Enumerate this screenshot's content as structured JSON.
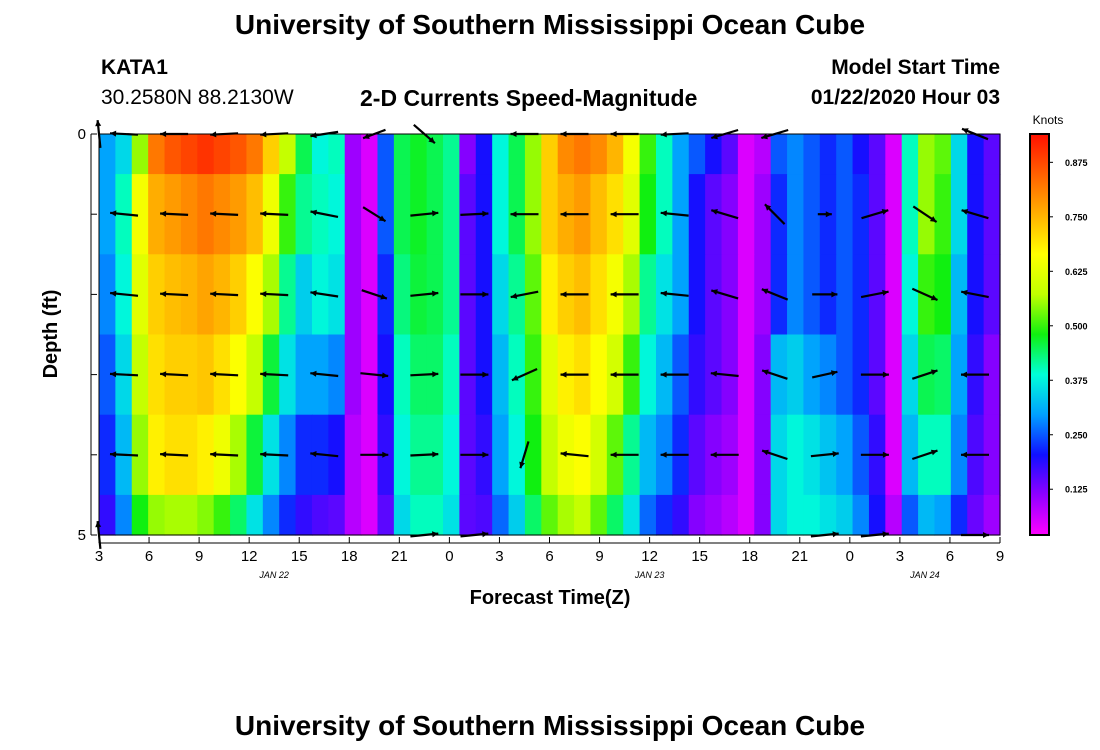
{
  "title_top": "University of Southern Mississippi Ocean Cube",
  "title_bottom": "University of Southern Mississippi Ocean Cube",
  "station": {
    "id": "KATA1",
    "coords": "30.2580N 88.2130W"
  },
  "plot_title": "2-D Currents Speed-Magnitude",
  "model_start": {
    "label": "Model Start Time",
    "value": "01/22/2020 Hour 03"
  },
  "colors": {
    "arrow": "#000000",
    "colormap": [
      "#ff00ff",
      "#9000ff",
      "#1010ff",
      "#00a0ff",
      "#00ffd8",
      "#10f010",
      "#c0ff00",
      "#ffff00",
      "#ffb000",
      "#ff6000",
      "#ff1000"
    ]
  },
  "chart_data": {
    "type": "heatmap",
    "title": "2-D Currents Speed-Magnitude",
    "xlabel": "Forecast Time(Z)",
    "ylabel": "Depth (ft)",
    "colorbar_label": "Knots",
    "colorbar_ticks": [
      "0.875",
      "0.750",
      "0.625",
      "0.500",
      "0.375",
      "0.250",
      "0.125"
    ],
    "colorbar_tick_values": [
      0.875,
      0.75,
      0.625,
      0.5,
      0.375,
      0.25,
      0.125
    ],
    "colorbar_range": [
      0.02,
      0.94
    ],
    "x_range_hours": [
      0,
      54
    ],
    "x_ticks": [
      "3",
      "6",
      "9",
      "12",
      "15",
      "18",
      "21",
      "0",
      "3",
      "6",
      "9",
      "12",
      "15",
      "18",
      "21",
      "0",
      "3",
      "6",
      "9"
    ],
    "x_tick_hours": [
      0,
      3,
      6,
      9,
      12,
      15,
      18,
      21,
      24,
      27,
      30,
      33,
      36,
      39,
      42,
      45,
      48,
      51,
      54
    ],
    "date_labels": [
      {
        "text": "JAN 22",
        "hour": 10.5
      },
      {
        "text": "JAN 23",
        "hour": 33
      },
      {
        "text": "JAN 24",
        "hour": 49.5
      }
    ],
    "y_ticks": [
      "0",
      "5"
    ],
    "y_range_ft": [
      0,
      5
    ],
    "depth_levels_ft": [
      0,
      1,
      2,
      3,
      4,
      5
    ],
    "depth_band_ft": [
      [
        0,
        0.5
      ],
      [
        0.5,
        1.5
      ],
      [
        1.5,
        2.5
      ],
      [
        2.5,
        3.5
      ],
      [
        3.5,
        4.5
      ],
      [
        4.5,
        5
      ]
    ],
    "band_profiles": [
      [
        0.3,
        0.35,
        0.55,
        0.82,
        0.86,
        0.88,
        0.9,
        0.88,
        0.86,
        0.82,
        0.72,
        0.58,
        0.45,
        0.38,
        0.4,
        0.1,
        0.05,
        0.25,
        0.45,
        0.47,
        0.45,
        0.42,
        0.12,
        0.2,
        0.38,
        0.45,
        0.55,
        0.72,
        0.8,
        0.82,
        0.8,
        0.75,
        0.65,
        0.5,
        0.4,
        0.3,
        0.25,
        0.2,
        0.15,
        0.05,
        0.08,
        0.25,
        0.28,
        0.25,
        0.22,
        0.25,
        0.2,
        0.15,
        0.05,
        0.4,
        0.55,
        0.52,
        0.35,
        0.2,
        0.15
      ],
      [
        0.3,
        0.4,
        0.65,
        0.76,
        0.78,
        0.8,
        0.82,
        0.8,
        0.78,
        0.74,
        0.64,
        0.5,
        0.42,
        0.4,
        0.38,
        0.1,
        0.05,
        0.25,
        0.45,
        0.47,
        0.45,
        0.42,
        0.15,
        0.2,
        0.38,
        0.45,
        0.55,
        0.72,
        0.76,
        0.78,
        0.74,
        0.7,
        0.62,
        0.48,
        0.4,
        0.3,
        0.2,
        0.15,
        0.12,
        0.05,
        0.1,
        0.22,
        0.28,
        0.25,
        0.22,
        0.25,
        0.22,
        0.15,
        0.05,
        0.4,
        0.55,
        0.5,
        0.35,
        0.2,
        0.15
      ],
      [
        0.28,
        0.38,
        0.62,
        0.72,
        0.74,
        0.75,
        0.77,
        0.75,
        0.72,
        0.66,
        0.56,
        0.42,
        0.34,
        0.38,
        0.36,
        0.1,
        0.05,
        0.22,
        0.43,
        0.46,
        0.45,
        0.42,
        0.15,
        0.2,
        0.35,
        0.42,
        0.52,
        0.68,
        0.72,
        0.74,
        0.7,
        0.65,
        0.56,
        0.42,
        0.36,
        0.3,
        0.2,
        0.15,
        0.12,
        0.05,
        0.1,
        0.22,
        0.28,
        0.25,
        0.22,
        0.25,
        0.22,
        0.15,
        0.05,
        0.38,
        0.5,
        0.48,
        0.32,
        0.2,
        0.15
      ],
      [
        0.25,
        0.35,
        0.58,
        0.7,
        0.72,
        0.72,
        0.73,
        0.7,
        0.66,
        0.58,
        0.46,
        0.36,
        0.3,
        0.3,
        0.28,
        0.1,
        0.05,
        0.2,
        0.4,
        0.44,
        0.44,
        0.4,
        0.15,
        0.2,
        0.32,
        0.4,
        0.5,
        0.62,
        0.68,
        0.7,
        0.66,
        0.6,
        0.5,
        0.38,
        0.32,
        0.25,
        0.18,
        0.15,
        0.12,
        0.05,
        0.12,
        0.32,
        0.34,
        0.3,
        0.28,
        0.25,
        0.22,
        0.15,
        0.05,
        0.35,
        0.45,
        0.44,
        0.3,
        0.18,
        0.12
      ],
      [
        0.22,
        0.32,
        0.55,
        0.68,
        0.7,
        0.7,
        0.68,
        0.64,
        0.56,
        0.46,
        0.36,
        0.28,
        0.22,
        0.22,
        0.2,
        0.08,
        0.05,
        0.18,
        0.38,
        0.42,
        0.42,
        0.38,
        0.15,
        0.18,
        0.3,
        0.38,
        0.48,
        0.58,
        0.64,
        0.66,
        0.6,
        0.52,
        0.42,
        0.32,
        0.28,
        0.22,
        0.15,
        0.12,
        0.1,
        0.05,
        0.12,
        0.35,
        0.38,
        0.36,
        0.33,
        0.3,
        0.25,
        0.18,
        0.05,
        0.32,
        0.4,
        0.4,
        0.28,
        0.16,
        0.12
      ],
      [
        0.18,
        0.28,
        0.48,
        0.55,
        0.56,
        0.56,
        0.54,
        0.5,
        0.44,
        0.36,
        0.28,
        0.22,
        0.18,
        0.16,
        0.15,
        0.08,
        0.05,
        0.15,
        0.35,
        0.4,
        0.4,
        0.36,
        0.15,
        0.16,
        0.26,
        0.34,
        0.44,
        0.52,
        0.56,
        0.58,
        0.52,
        0.44,
        0.36,
        0.26,
        0.22,
        0.18,
        0.12,
        0.1,
        0.08,
        0.05,
        0.12,
        0.35,
        0.38,
        0.38,
        0.36,
        0.34,
        0.28,
        0.2,
        0.08,
        0.25,
        0.32,
        0.3,
        0.22,
        0.14,
        0.1
      ]
    ],
    "vector_times_hours": [
      0,
      1.5,
      4.5,
      7.5,
      10.5,
      13.5,
      16.5,
      19.5,
      22.5,
      25.5,
      28.5,
      31.5,
      34.5,
      37.5,
      40.5,
      43.5,
      46.5,
      49.5,
      52.5
    ],
    "vector_dx": [
      [
        -0.1,
        -1.0,
        -1.0,
        -1.0,
        -1.0,
        -1.0,
        -0.8,
        0.8,
        0.0,
        -1.0,
        -1.0,
        -1.0,
        -1.0,
        -1.0,
        -1.0,
        0.0,
        0.0,
        0.0,
        -1.0
      ],
      [
        0.0,
        -1.0,
        -1.0,
        -1.0,
        -1.0,
        -1.0,
        0.8,
        1.0,
        1.0,
        -1.0,
        -1.0,
        -1.0,
        -1.0,
        -1.0,
        -1.0,
        0.5,
        1.0,
        0.9,
        -1.0
      ],
      [
        0.0,
        -1.0,
        -1.0,
        -1.0,
        -1.0,
        -1.0,
        0.9,
        1.0,
        1.0,
        -1.0,
        -1.0,
        -1.0,
        -1.0,
        -1.0,
        -1.0,
        0.9,
        1.0,
        0.9,
        -1.0
      ],
      [
        0.0,
        -1.0,
        -1.0,
        -1.0,
        -1.0,
        -1.0,
        1.0,
        1.0,
        1.0,
        -0.9,
        -1.0,
        -1.0,
        -1.0,
        -1.0,
        -0.9,
        0.9,
        1.0,
        0.9,
        -1.0
      ],
      [
        0.0,
        -1.0,
        -1.0,
        -1.0,
        -1.0,
        -1.0,
        1.0,
        1.0,
        1.0,
        -0.3,
        -1.0,
        -1.0,
        -1.0,
        -1.0,
        -0.9,
        1.0,
        1.0,
        0.9,
        -1.0
      ],
      [
        -0.1,
        0.0,
        0.0,
        0.0,
        0.0,
        0.0,
        0.0,
        1.0,
        1.0,
        0.0,
        0.0,
        0.0,
        0.0,
        0.0,
        0.0,
        1.0,
        1.0,
        0.0,
        1.0
      ]
    ],
    "vector_dy": [
      [
        -1.0,
        -0.05,
        0.0,
        0.05,
        0.05,
        0.15,
        0.3,
        0.7,
        0.0,
        0.0,
        0.0,
        0.0,
        0.05,
        0.3,
        0.3,
        0.0,
        0.0,
        0.0,
        -0.4
      ],
      [
        0.0,
        -0.1,
        -0.05,
        -0.05,
        -0.05,
        -0.2,
        0.5,
        -0.1,
        -0.05,
        0.0,
        0.0,
        0.0,
        -0.1,
        -0.3,
        -1.0,
        0.0,
        -0.3,
        0.6,
        -0.3
      ],
      [
        0.0,
        -0.1,
        -0.05,
        -0.05,
        -0.05,
        -0.15,
        0.3,
        -0.1,
        0.0,
        0.2,
        0.0,
        0.0,
        -0.1,
        -0.3,
        -0.4,
        0.0,
        -0.2,
        0.4,
        -0.2
      ],
      [
        0.0,
        -0.05,
        -0.05,
        -0.05,
        -0.05,
        -0.1,
        0.1,
        -0.05,
        0.0,
        0.4,
        0.0,
        0.0,
        0.0,
        -0.1,
        -0.3,
        -0.2,
        0.0,
        -0.3,
        0.0
      ],
      [
        0.0,
        -0.05,
        -0.05,
        -0.05,
        -0.05,
        -0.1,
        0.0,
        -0.05,
        0.0,
        1.0,
        -0.1,
        0.0,
        0.0,
        0.0,
        -0.3,
        -0.1,
        0.0,
        -0.3,
        0.0
      ],
      [
        -1.0,
        0.0,
        0.0,
        0.0,
        0.0,
        0.0,
        0.0,
        -0.1,
        -0.1,
        0.0,
        0.0,
        0.0,
        0.0,
        0.0,
        0.0,
        -0.1,
        -0.1,
        0.0,
        0.0
      ]
    ]
  }
}
